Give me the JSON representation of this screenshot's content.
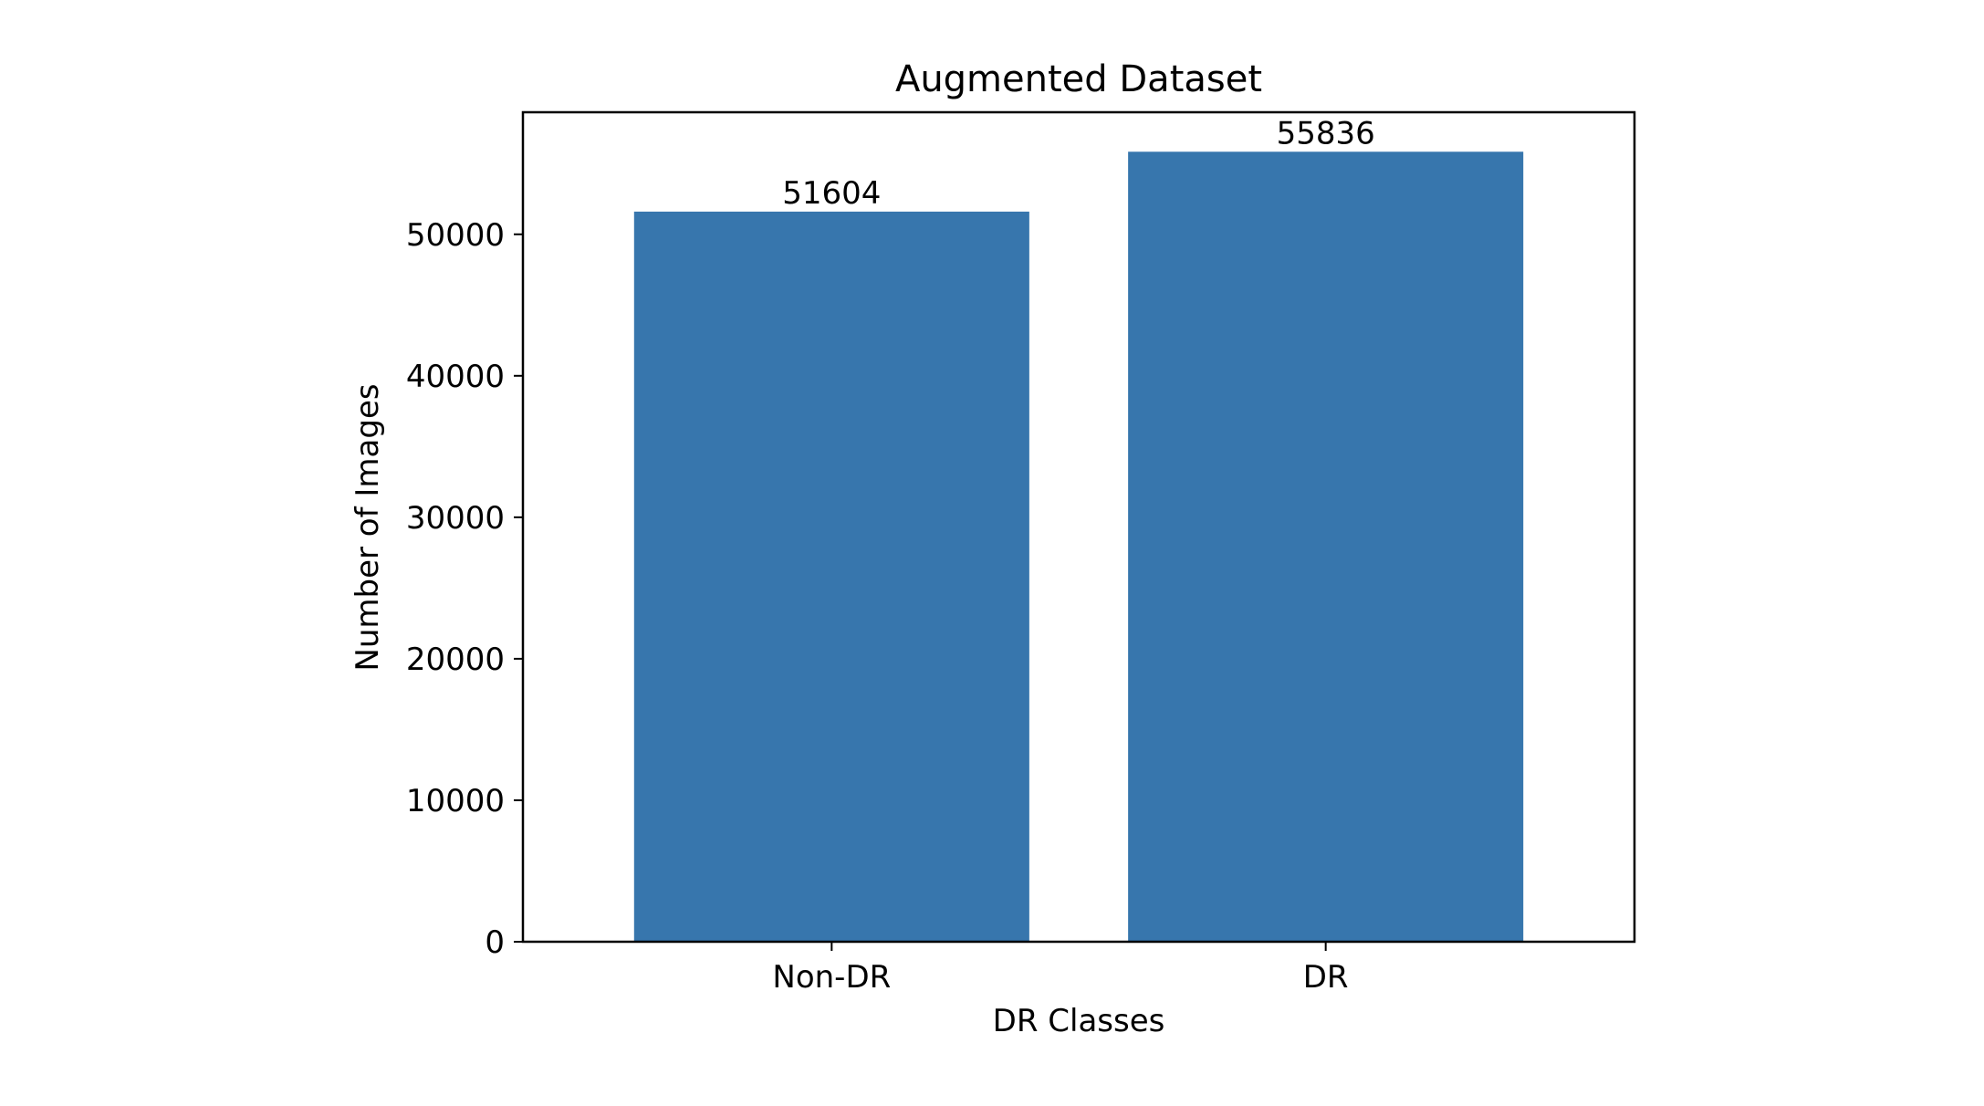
{
  "chart_data": {
    "type": "bar",
    "title": "Augmented Dataset",
    "xlabel": "DR Classes",
    "ylabel": "Number of Images",
    "categories": [
      "Non-DR",
      "DR"
    ],
    "values": [
      51604,
      55836
    ],
    "data_labels": [
      "51604",
      "55836"
    ],
    "ylim": [
      0,
      58627
    ],
    "yticks": [
      0,
      10000,
      20000,
      30000,
      40000,
      50000
    ],
    "ytick_labels": [
      "0",
      "10000",
      "20000",
      "30000",
      "40000",
      "50000"
    ],
    "grid": false,
    "legend": "none",
    "bar_color": "#3776ad"
  }
}
